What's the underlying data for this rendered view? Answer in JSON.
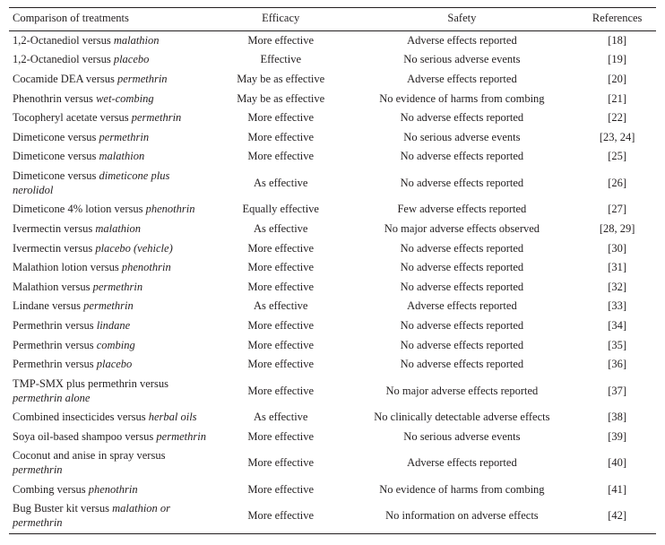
{
  "table": {
    "columns": [
      "Comparison of treatments",
      "Efficacy",
      "Safety",
      "References"
    ],
    "rows": [
      {
        "cmp_pre": "1,2-Octanediol versus ",
        "cmp_it": "malathion",
        "cmp_post": "",
        "eff": "More effective",
        "safe": "Adverse effects reported",
        "ref": "[18]"
      },
      {
        "cmp_pre": "1,2-Octanediol versus ",
        "cmp_it": "placebo",
        "cmp_post": "",
        "eff": "Effective",
        "safe": "No serious adverse events",
        "ref": "[19]"
      },
      {
        "cmp_pre": "Cocamide DEA versus ",
        "cmp_it": "permethrin",
        "cmp_post": "",
        "eff": "May be as effective",
        "safe": "Adverse effects reported",
        "ref": "[20]"
      },
      {
        "cmp_pre": "Phenothrin versus ",
        "cmp_it": "wet-combing",
        "cmp_post": "",
        "eff": "May be as effective",
        "safe": "No evidence of harms from combing",
        "ref": "[21]"
      },
      {
        "cmp_pre": "Tocopheryl acetate versus ",
        "cmp_it": "permethrin",
        "cmp_post": "",
        "eff": "More effective",
        "safe": "No adverse effects reported",
        "ref": "[22]"
      },
      {
        "cmp_pre": "Dimeticone versus ",
        "cmp_it": "permethrin",
        "cmp_post": "",
        "eff": "More effective",
        "safe": "No serious adverse events",
        "ref": "[23, 24]"
      },
      {
        "cmp_pre": "Dimeticone versus ",
        "cmp_it": "malathion",
        "cmp_post": "",
        "eff": "More effective",
        "safe": "No adverse effects reported",
        "ref": "[25]"
      },
      {
        "cmp_pre": "Dimeticone versus ",
        "cmp_it": "dimeticone plus nerolidol",
        "cmp_post": "",
        "eff": "As effective",
        "safe": "No adverse effects reported",
        "ref": "[26]"
      },
      {
        "cmp_pre": "Dimeticone 4% lotion versus ",
        "cmp_it": "phenothrin",
        "cmp_post": "",
        "eff": "Equally effective",
        "safe": "Few adverse effects reported",
        "ref": "[27]"
      },
      {
        "cmp_pre": "Ivermectin versus ",
        "cmp_it": "malathion",
        "cmp_post": "",
        "eff": "As effective",
        "safe": "No major adverse effects observed",
        "ref": "[28, 29]"
      },
      {
        "cmp_pre": "Ivermectin versus ",
        "cmp_it": "placebo (vehicle)",
        "cmp_post": "",
        "eff": "More effective",
        "safe": "No adverse effects reported",
        "ref": "[30]"
      },
      {
        "cmp_pre": "Malathion lotion versus ",
        "cmp_it": "phenothrin",
        "cmp_post": "",
        "eff": "More effective",
        "safe": "No adverse effects reported",
        "ref": "[31]"
      },
      {
        "cmp_pre": "Malathion versus ",
        "cmp_it": "permethrin",
        "cmp_post": "",
        "eff": "More effective",
        "safe": "No adverse effects reported",
        "ref": "[32]"
      },
      {
        "cmp_pre": "Lindane versus ",
        "cmp_it": "permethrin",
        "cmp_post": "",
        "eff": "As effective",
        "safe": "Adverse effects reported",
        "ref": "[33]"
      },
      {
        "cmp_pre": "Permethrin versus ",
        "cmp_it": "lindane",
        "cmp_post": "",
        "eff": "More effective",
        "safe": "No adverse effects reported",
        "ref": "[34]"
      },
      {
        "cmp_pre": "Permethrin versus ",
        "cmp_it": "combing",
        "cmp_post": "",
        "eff": "More effective",
        "safe": "No adverse effects reported",
        "ref": "[35]"
      },
      {
        "cmp_pre": "Permethrin versus ",
        "cmp_it": "placebo",
        "cmp_post": "",
        "eff": "More effective",
        "safe": "No adverse effects reported",
        "ref": "[36]"
      },
      {
        "cmp_pre": "TMP-SMX plus permethrin versus ",
        "cmp_it": "permethrin alone",
        "cmp_post": "",
        "eff": "More effective",
        "safe": "No major adverse effects reported",
        "ref": "[37]"
      },
      {
        "cmp_pre": "Combined insecticides versus ",
        "cmp_it": "herbal oils",
        "cmp_post": "",
        "eff": "As effective",
        "safe": "No clinically detectable adverse effects",
        "ref": "[38]"
      },
      {
        "cmp_pre": "Soya oil-based shampoo versus ",
        "cmp_it": "permethrin",
        "cmp_post": "",
        "eff": "More effective",
        "safe": "No serious adverse events",
        "ref": "[39]"
      },
      {
        "cmp_pre": "Coconut and anise in spray versus ",
        "cmp_it": "permethrin",
        "cmp_post": "",
        "eff": "More effective",
        "safe": "Adverse effects reported",
        "ref": "[40]"
      },
      {
        "cmp_pre": "Combing versus ",
        "cmp_it": "phenothrin",
        "cmp_post": "",
        "eff": "More effective",
        "safe": "No evidence of harms from combing",
        "ref": "[41]"
      },
      {
        "cmp_pre": "Bug Buster kit versus ",
        "cmp_it": "malathion or permethrin",
        "cmp_post": "",
        "eff": "More effective",
        "safe": "No information on adverse effects",
        "ref": "[42]"
      }
    ],
    "style": {
      "background_color": "#ffffff",
      "text_color": "#231f20",
      "rule_color": "#231f20",
      "font_family": "Minion Pro / Times",
      "header_fontsize_pt": 10,
      "body_fontsize_pt": 10,
      "col_widths_pct": [
        32,
        20,
        36,
        12
      ],
      "col_align": [
        "left",
        "center",
        "center",
        "center"
      ]
    }
  }
}
